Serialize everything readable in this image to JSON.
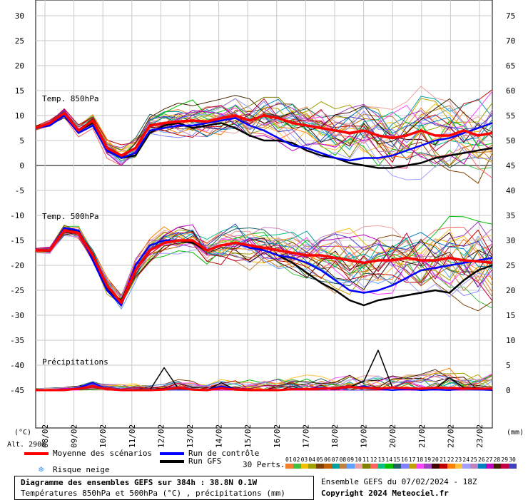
{
  "header": {
    "units_left": "(°C)",
    "units_right": "(mm)",
    "altitude": "Alt. 290m"
  },
  "labels": {
    "t850": "Temp. 850hPa",
    "t500": "Temp. 500hPa",
    "precip": "Précipitations"
  },
  "legend": {
    "mean": "Moyenne des scénarios",
    "control": "Run de contrôle",
    "gfs": "Run GFS",
    "snow": "Risque neige",
    "perts": "30 Perts.",
    "mean_color": "#ff0000",
    "control_color": "#0000ff",
    "gfs_color": "#000000",
    "snow_color": "#3399ff"
  },
  "pert_numbers": [
    "01",
    "02",
    "03",
    "04",
    "05",
    "06",
    "07",
    "08",
    "09",
    "10",
    "11",
    "12",
    "13",
    "14",
    "15",
    "16",
    "17",
    "18",
    "19",
    "20",
    "21",
    "22",
    "23",
    "24",
    "25",
    "26",
    "27",
    "28",
    "29",
    "30"
  ],
  "pert_colors": [
    "#f08030",
    "#40c040",
    "#f0c000",
    "#a0a000",
    "#804000",
    "#c06000",
    "#00a0a0",
    "#c08040",
    "#60a0ff",
    "#f0a0a0",
    "#808000",
    "#ff6060",
    "#00c080",
    "#00c000",
    "#206060",
    "#8080ff",
    "#c0a000",
    "#ff40ff",
    "#a040c0",
    "#400000",
    "#c00000",
    "#ff8000",
    "#ffc040",
    "#a0a0ff",
    "#c080c0",
    "#0080c0",
    "#c000c0",
    "#402000",
    "#c00040",
    "#4040c0"
  ],
  "title": {
    "line1": "Diagramme des ensembles GEFS sur 384h : 38.8N 0.1W",
    "line2": "Températures 850hPa et 500hPa (°C) , précipitations (mm)"
  },
  "info": {
    "run": "Ensemble GEFS du 07/02/2024 - 18Z",
    "copyright": "Copyright 2024 Meteociel.fr"
  },
  "chart_data": {
    "type": "line",
    "x_dates": [
      "09/02",
      "10/02",
      "11/02",
      "12/02",
      "13/02",
      "14/02",
      "15/02",
      "16/02",
      "17/02",
      "18/02",
      "19/02",
      "20/02",
      "21/02",
      "22/02",
      "23/02"
    ],
    "x_first_partial": "08/02",
    "y_left_ticks": [
      30,
      25,
      20,
      15,
      10,
      5,
      0,
      -5,
      -10,
      -15,
      -20,
      -25,
      -30,
      -35,
      -40,
      -45
    ],
    "y_left_range": [
      -45,
      30
    ],
    "y_right_ticks": [
      75,
      70,
      65,
      60,
      55,
      50,
      45,
      40,
      35,
      30,
      25,
      20,
      15,
      10,
      5,
      0
    ],
    "y_right_range": [
      0,
      75
    ],
    "grid": true,
    "t850_mean": [
      7.5,
      8.5,
      10.5,
      7,
      9,
      3.5,
      2,
      3.5,
      8,
      8.5,
      8.8,
      9,
      8.8,
      9.5,
      10,
      9,
      10,
      9.5,
      8.5,
      8,
      7.5,
      7,
      6.5,
      7,
      6,
      5.5,
      6,
      7,
      6,
      6,
      7,
      6,
      6.5
    ],
    "t850_control": [
      7.5,
      8,
      10,
      6.5,
      8,
      3,
      1.5,
      2.5,
      7,
      7.5,
      8,
      8,
      8.5,
      9,
      9.5,
      8,
      7,
      5.5,
      4,
      3.5,
      2.5,
      1.5,
      1,
      1.5,
      1.5,
      2,
      3,
      4,
      5,
      5.5,
      6.5,
      7.5,
      8.5
    ],
    "t850_gfs": [
      7.5,
      8.5,
      10,
      7,
      8.5,
      3.5,
      1.5,
      2,
      6.5,
      8,
      8.5,
      7.5,
      8,
      8.5,
      7.5,
      6,
      5,
      5,
      4.5,
      3,
      2,
      1.5,
      0.5,
      0,
      -0.5,
      -0.5,
      0,
      0.5,
      1.5,
      2,
      2.5,
      3,
      3.5
    ],
    "t500_mean": [
      -17,
      -17,
      -13,
      -13.5,
      -18,
      -24,
      -27.5,
      -21,
      -17,
      -15.5,
      -15,
      -15,
      -17,
      -16,
      -15.5,
      -16,
      -16.5,
      -17,
      -17.5,
      -18,
      -18,
      -18.5,
      -19,
      -19.5,
      -19,
      -19,
      -18.5,
      -19,
      -19,
      -18.5,
      -19,
      -19.2,
      -19.5
    ],
    "t500_control": [
      -17,
      -17,
      -12.5,
      -13,
      -19,
      -25,
      -28,
      -20,
      -16,
      -15,
      -15,
      -15,
      -17,
      -16,
      -15.5,
      -16.5,
      -17,
      -18,
      -18.5,
      -19.5,
      -21,
      -23,
      -25,
      -25.5,
      -25,
      -24,
      -22.5,
      -21,
      -20.5,
      -20,
      -19.5,
      -19,
      -18.5
    ],
    "t500_gfs": [
      -17,
      -17,
      -13,
      -13,
      -18.5,
      -25,
      -27,
      -21,
      -17,
      -15.5,
      -15,
      -15.5,
      -17,
      -16,
      -15.5,
      -16,
      -17,
      -18,
      -19.5,
      -21.5,
      -23.5,
      -25,
      -27,
      -28,
      -27,
      -26.5,
      -26,
      -25.5,
      -25,
      -25.5,
      -23,
      -21,
      -20
    ],
    "precip_mean": [
      0,
      0,
      0,
      0.3,
      0.8,
      0.2,
      0,
      0,
      0,
      0.1,
      0.5,
      0.1,
      0,
      0.4,
      0.1,
      0,
      0,
      0,
      0.2,
      0.2,
      0.3,
      0.4,
      0.6,
      0.5,
      0.3,
      0.5,
      0.4,
      0.3,
      0.5,
      0.4,
      0.3,
      0.3,
      0.3
    ],
    "precip_control": [
      0,
      0,
      0,
      0.5,
      1.5,
      0.2,
      0,
      0,
      0,
      0.2,
      0.6,
      0.2,
      0,
      0.8,
      0.2,
      0,
      0,
      0,
      0.3,
      0.2,
      0.5,
      0.3,
      0.5,
      0.8,
      0.2,
      0,
      0.2,
      0,
      0.1,
      0,
      0.3,
      0.1,
      0
    ],
    "precip_gfs": [
      0,
      0,
      0,
      0.3,
      0.8,
      0.1,
      0,
      0,
      0,
      4.5,
      0.3,
      0.1,
      0,
      1.5,
      0.1,
      0,
      0,
      0,
      0.3,
      0.1,
      0.3,
      0.2,
      0.6,
      1.8,
      8,
      0.5,
      0.4,
      0.2,
      0.3,
      2.5,
      0.5,
      0.5,
      0.3
    ]
  }
}
